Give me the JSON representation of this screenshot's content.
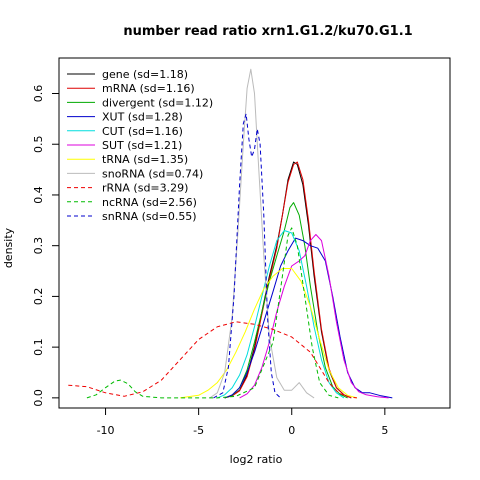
{
  "chart_data": {
    "type": "line",
    "title": "number read ratio xrn1.G1.2/ku70.G1.1",
    "xlabel": "log2 ratio",
    "ylabel": "density",
    "xlim": [
      -12.5,
      8.5
    ],
    "ylim": [
      -0.02,
      0.67
    ],
    "xticks": [
      -10,
      -5,
      0,
      5
    ],
    "yticks": [
      0.0,
      0.1,
      0.2,
      0.3,
      0.4,
      0.5,
      0.6
    ],
    "grid": false,
    "legend_position": "top-left",
    "series": [
      {
        "name": "gene (sd=1.18)",
        "color": "#000000",
        "dash": "solid",
        "points": [
          [
            -3.6,
            0
          ],
          [
            -3.2,
            0.004
          ],
          [
            -2.8,
            0.015
          ],
          [
            -2.4,
            0.045
          ],
          [
            -2.0,
            0.1
          ],
          [
            -1.6,
            0.17
          ],
          [
            -1.2,
            0.24
          ],
          [
            -0.8,
            0.3
          ],
          [
            -0.5,
            0.36
          ],
          [
            -0.2,
            0.43
          ],
          [
            0.1,
            0.465
          ],
          [
            0.3,
            0.46
          ],
          [
            0.6,
            0.42
          ],
          [
            0.9,
            0.34
          ],
          [
            1.2,
            0.24
          ],
          [
            1.6,
            0.13
          ],
          [
            2.0,
            0.055
          ],
          [
            2.4,
            0.02
          ],
          [
            2.8,
            0.006
          ],
          [
            3.2,
            0
          ]
        ]
      },
      {
        "name": "mRNA (sd=1.16)",
        "color": "#dd0000",
        "dash": "solid",
        "points": [
          [
            -3.6,
            0
          ],
          [
            -3.2,
            0.004
          ],
          [
            -2.8,
            0.014
          ],
          [
            -2.4,
            0.042
          ],
          [
            -2.0,
            0.095
          ],
          [
            -1.6,
            0.165
          ],
          [
            -1.2,
            0.235
          ],
          [
            -0.8,
            0.295
          ],
          [
            -0.5,
            0.36
          ],
          [
            -0.2,
            0.425
          ],
          [
            0.1,
            0.46
          ],
          [
            0.3,
            0.465
          ],
          [
            0.6,
            0.43
          ],
          [
            0.9,
            0.35
          ],
          [
            1.2,
            0.25
          ],
          [
            1.6,
            0.135
          ],
          [
            2.0,
            0.058
          ],
          [
            2.4,
            0.02
          ],
          [
            2.8,
            0.006
          ],
          [
            3.2,
            0
          ]
        ]
      },
      {
        "name": "divergent (sd=1.12)",
        "color": "#00aa00",
        "dash": "solid",
        "points": [
          [
            -3.6,
            0
          ],
          [
            -3.2,
            0.005
          ],
          [
            -2.8,
            0.02
          ],
          [
            -2.4,
            0.055
          ],
          [
            -2.0,
            0.11
          ],
          [
            -1.6,
            0.17
          ],
          [
            -1.2,
            0.23
          ],
          [
            -0.8,
            0.28
          ],
          [
            -0.4,
            0.33
          ],
          [
            -0.1,
            0.375
          ],
          [
            0.1,
            0.385
          ],
          [
            0.4,
            0.36
          ],
          [
            0.7,
            0.3
          ],
          [
            1.0,
            0.22
          ],
          [
            1.4,
            0.13
          ],
          [
            1.8,
            0.06
          ],
          [
            2.2,
            0.022
          ],
          [
            2.6,
            0.007
          ],
          [
            3.0,
            0
          ]
        ]
      },
      {
        "name": "XUT (sd=1.28)",
        "color": "#0000cc",
        "dash": "solid",
        "points": [
          [
            -3.6,
            0
          ],
          [
            -3.2,
            0.006
          ],
          [
            -2.8,
            0.02
          ],
          [
            -2.4,
            0.05
          ],
          [
            -2.0,
            0.09
          ],
          [
            -1.5,
            0.15
          ],
          [
            -1.0,
            0.21
          ],
          [
            -0.6,
            0.26
          ],
          [
            -0.2,
            0.29
          ],
          [
            0.2,
            0.315
          ],
          [
            0.6,
            0.31
          ],
          [
            1.0,
            0.3
          ],
          [
            1.4,
            0.295
          ],
          [
            1.8,
            0.27
          ],
          [
            2.2,
            0.2
          ],
          [
            2.6,
            0.12
          ],
          [
            3.0,
            0.05
          ],
          [
            3.4,
            0.02
          ],
          [
            3.8,
            0.01
          ],
          [
            4.2,
            0.01
          ],
          [
            4.8,
            0.004
          ],
          [
            5.4,
            0
          ]
        ]
      },
      {
        "name": "CUT (sd=1.16)",
        "color": "#00dddd",
        "dash": "solid",
        "points": [
          [
            -4.0,
            0
          ],
          [
            -3.6,
            0.006
          ],
          [
            -3.2,
            0.02
          ],
          [
            -2.8,
            0.045
          ],
          [
            -2.4,
            0.085
          ],
          [
            -2.0,
            0.14
          ],
          [
            -1.6,
            0.2
          ],
          [
            -1.2,
            0.26
          ],
          [
            -0.8,
            0.31
          ],
          [
            -0.4,
            0.33
          ],
          [
            0,
            0.325
          ],
          [
            0.4,
            0.29
          ],
          [
            0.8,
            0.22
          ],
          [
            1.2,
            0.14
          ],
          [
            1.6,
            0.075
          ],
          [
            2.0,
            0.03
          ],
          [
            2.4,
            0.01
          ],
          [
            2.8,
            0
          ]
        ]
      },
      {
        "name": "SUT (sd=1.21)",
        "color": "#dd00dd",
        "dash": "solid",
        "points": [
          [
            -2.8,
            0
          ],
          [
            -2.4,
            0.008
          ],
          [
            -2.0,
            0.025
          ],
          [
            -1.6,
            0.06
          ],
          [
            -1.2,
            0.11
          ],
          [
            -0.8,
            0.17
          ],
          [
            -0.4,
            0.22
          ],
          [
            0,
            0.26
          ],
          [
            0.4,
            0.27
          ],
          [
            0.7,
            0.28
          ],
          [
            1.0,
            0.31
          ],
          [
            1.3,
            0.322
          ],
          [
            1.6,
            0.31
          ],
          [
            2.0,
            0.24
          ],
          [
            2.4,
            0.15
          ],
          [
            2.8,
            0.075
          ],
          [
            3.2,
            0.03
          ],
          [
            3.6,
            0.012
          ],
          [
            4.0,
            0.006
          ],
          [
            4.6,
            0.002
          ],
          [
            5.2,
            0
          ]
        ]
      },
      {
        "name": "tRNA (sd=1.35)",
        "color": "#ffff00",
        "dash": "solid",
        "points": [
          [
            -6.0,
            0
          ],
          [
            -5.0,
            0.005
          ],
          [
            -4.5,
            0.015
          ],
          [
            -4.0,
            0.03
          ],
          [
            -3.5,
            0.055
          ],
          [
            -3.0,
            0.09
          ],
          [
            -2.5,
            0.13
          ],
          [
            -2.0,
            0.175
          ],
          [
            -1.5,
            0.215
          ],
          [
            -1.0,
            0.24
          ],
          [
            -0.5,
            0.255
          ],
          [
            0,
            0.255
          ],
          [
            0.5,
            0.23
          ],
          [
            1.0,
            0.18
          ],
          [
            1.5,
            0.115
          ],
          [
            2.0,
            0.055
          ],
          [
            2.5,
            0.02
          ],
          [
            3.0,
            0.005
          ],
          [
            3.5,
            0
          ]
        ]
      },
      {
        "name": "snoRNA (sd=0.74)",
        "color": "#bbbbbb",
        "dash": "solid",
        "points": [
          [
            -4.4,
            0
          ],
          [
            -4.0,
            0.01
          ],
          [
            -3.6,
            0.05
          ],
          [
            -3.2,
            0.16
          ],
          [
            -2.9,
            0.32
          ],
          [
            -2.6,
            0.5
          ],
          [
            -2.4,
            0.61
          ],
          [
            -2.2,
            0.648
          ],
          [
            -2.0,
            0.6
          ],
          [
            -1.8,
            0.47
          ],
          [
            -1.5,
            0.28
          ],
          [
            -1.2,
            0.12
          ],
          [
            -0.8,
            0.04
          ],
          [
            -0.4,
            0.015
          ],
          [
            0,
            0.015
          ],
          [
            0.4,
            0.03
          ],
          [
            0.8,
            0.01
          ],
          [
            1.2,
            0
          ]
        ]
      },
      {
        "name": "rRNA (sd=3.29)",
        "color": "#ee0000",
        "dash": "dashed",
        "points": [
          [
            -12.0,
            0.025
          ],
          [
            -11.0,
            0.022
          ],
          [
            -10.0,
            0.01
          ],
          [
            -9.0,
            0.003
          ],
          [
            -8.0,
            0.012
          ],
          [
            -7.0,
            0.035
          ],
          [
            -6.0,
            0.075
          ],
          [
            -5.0,
            0.115
          ],
          [
            -4.0,
            0.14
          ],
          [
            -3.0,
            0.15
          ],
          [
            -2.0,
            0.145
          ],
          [
            -1.0,
            0.135
          ],
          [
            0,
            0.12
          ],
          [
            1.0,
            0.09
          ],
          [
            1.5,
            0.06
          ],
          [
            2.0,
            0.03
          ],
          [
            2.5,
            0.01
          ],
          [
            3.0,
            0.002
          ],
          [
            3.5,
            0
          ]
        ]
      },
      {
        "name": "ncRNA (sd=2.56)",
        "color": "#00bb00",
        "dash": "dashed",
        "points": [
          [
            -11.0,
            0
          ],
          [
            -10.5,
            0.006
          ],
          [
            -10.0,
            0.02
          ],
          [
            -9.5,
            0.033
          ],
          [
            -9.2,
            0.035
          ],
          [
            -8.8,
            0.028
          ],
          [
            -8.4,
            0.012
          ],
          [
            -8.0,
            0.003
          ],
          [
            -7.0,
            0
          ],
          [
            -4.0,
            0
          ],
          [
            -3.0,
            0.003
          ],
          [
            -2.0,
            0.02
          ],
          [
            -1.0,
            0.11
          ],
          [
            -0.5,
            0.24
          ],
          [
            -0.2,
            0.32
          ],
          [
            0,
            0.335
          ],
          [
            0.3,
            0.3
          ],
          [
            0.7,
            0.2
          ],
          [
            1.1,
            0.1
          ],
          [
            1.5,
            0.03
          ],
          [
            2.0,
            0.005
          ],
          [
            2.5,
            0
          ]
        ]
      },
      {
        "name": "snRNA (sd=0.55)",
        "color": "#0000cc",
        "dash": "dashed",
        "points": [
          [
            -4.2,
            0
          ],
          [
            -3.7,
            0.01
          ],
          [
            -3.4,
            0.06
          ],
          [
            -3.1,
            0.2
          ],
          [
            -2.8,
            0.42
          ],
          [
            -2.6,
            0.54
          ],
          [
            -2.45,
            0.56
          ],
          [
            -2.3,
            0.51
          ],
          [
            -2.15,
            0.475
          ],
          [
            -2.0,
            0.49
          ],
          [
            -1.85,
            0.53
          ],
          [
            -1.7,
            0.5
          ],
          [
            -1.5,
            0.36
          ],
          [
            -1.3,
            0.16
          ],
          [
            -1.1,
            0.05
          ],
          [
            -0.9,
            0.01
          ],
          [
            -0.6,
            0
          ]
        ]
      }
    ]
  }
}
